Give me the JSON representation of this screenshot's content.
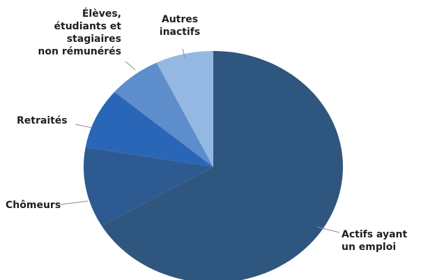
{
  "chart_data": {
    "type": "pie",
    "title": "",
    "slices": [
      {
        "label_lines": [
          "Actifs ayant",
          "un emploi"
        ],
        "value": 66.5,
        "color": "#2f567e"
      },
      {
        "label_lines": [
          "Chômeurs"
        ],
        "value": 11.2,
        "color": "#2d5a90"
      },
      {
        "label_lines": [
          "Retraités"
        ],
        "value": 8.5,
        "color": "#2a66b8"
      },
      {
        "label_lines": [
          "Élèves,",
          "étudiants et",
          "stagiaires",
          "non rémunérés"
        ],
        "value": 6.6,
        "color": "#5e8dcc"
      },
      {
        "label_lines": [
          "Autres",
          "inactifs"
        ],
        "value": 7.2,
        "color": "#95b8e3"
      }
    ]
  }
}
